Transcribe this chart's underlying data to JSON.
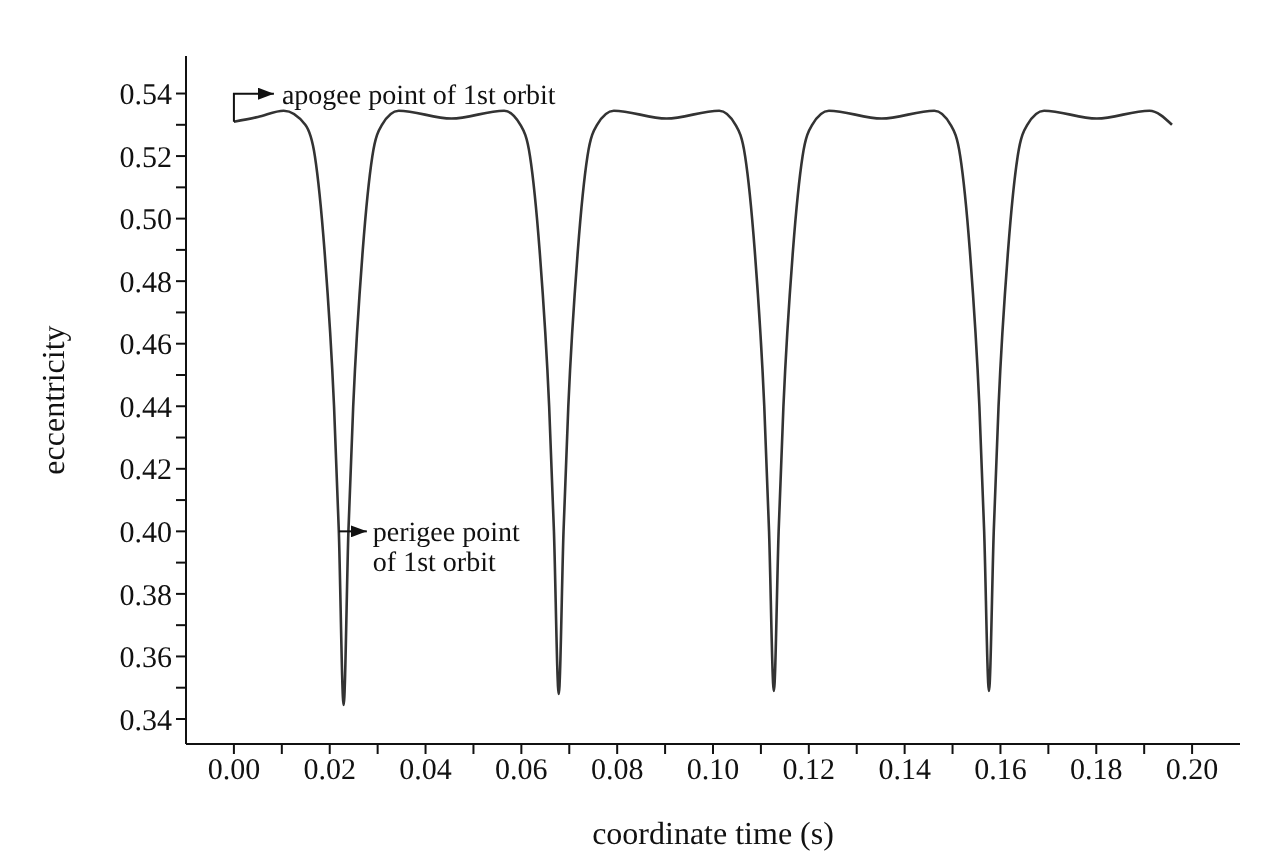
{
  "chart_data": {
    "type": "line",
    "xlabel": "coordinate time (s)",
    "ylabel": "eccentricity",
    "x": [
      0,
      0.005,
      0.0104,
      0.0149,
      0.0169,
      0.0189,
      0.0209,
      0.0219,
      0.0229,
      0.0239,
      0.0249,
      0.0269,
      0.0289,
      0.0309,
      0.0344,
      0.0454,
      0.0564,
      0.0598,
      0.0618,
      0.0638,
      0.0658,
      0.0668,
      0.0678,
      0.0688,
      0.0698,
      0.0718,
      0.0738,
      0.0758,
      0.0793,
      0.0903,
      0.1013,
      0.1047,
      0.1067,
      0.1087,
      0.1107,
      0.1117,
      0.1127,
      0.1137,
      0.1147,
      0.1167,
      0.1187,
      0.1207,
      0.1242,
      0.1352,
      0.1462,
      0.1496,
      0.1516,
      0.1536,
      0.1556,
      0.1566,
      0.1576,
      0.1586,
      0.1596,
      0.1616,
      0.1636,
      0.1656,
      0.1691,
      0.1801,
      0.1911,
      0.1958
    ],
    "series": [
      {
        "color": "#333333",
        "values": [
          0.531,
          0.5325,
          0.5345,
          0.53,
          0.52,
          0.49,
          0.44,
          0.4,
          0.3445,
          0.4,
          0.44,
          0.49,
          0.52,
          0.53,
          0.5345,
          0.532,
          0.5345,
          0.53,
          0.52,
          0.49,
          0.44,
          0.4,
          0.348,
          0.4,
          0.44,
          0.49,
          0.52,
          0.53,
          0.5345,
          0.532,
          0.5345,
          0.53,
          0.52,
          0.49,
          0.44,
          0.4,
          0.349,
          0.4,
          0.44,
          0.49,
          0.52,
          0.53,
          0.5345,
          0.532,
          0.5345,
          0.53,
          0.52,
          0.49,
          0.44,
          0.4,
          0.349,
          0.4,
          0.44,
          0.49,
          0.52,
          0.53,
          0.5345,
          0.532,
          0.5345,
          0.53
        ]
      }
    ],
    "xlim": [
      -0.01,
      0.21
    ],
    "xticks": [
      {
        "value": 0,
        "label": "0.00"
      },
      {
        "value": 0.01,
        "label": null
      },
      {
        "value": 0.02,
        "label": "0.02"
      },
      {
        "value": 0.03,
        "label": null
      },
      {
        "value": 0.04,
        "label": "0.04"
      },
      {
        "value": 0.05,
        "label": null
      },
      {
        "value": 0.06,
        "label": "0.06"
      },
      {
        "value": 0.07,
        "label": null
      },
      {
        "value": 0.08,
        "label": "0.08"
      },
      {
        "value": 0.09,
        "label": null
      },
      {
        "value": 0.1,
        "label": "0.10"
      },
      {
        "value": 0.11,
        "label": null
      },
      {
        "value": 0.12,
        "label": "0.12"
      },
      {
        "value": 0.13,
        "label": null
      },
      {
        "value": 0.14,
        "label": "0.14"
      },
      {
        "value": 0.15,
        "label": null
      },
      {
        "value": 0.16,
        "label": "0.16"
      },
      {
        "value": 0.17,
        "label": null
      },
      {
        "value": 0.18,
        "label": "0.18"
      },
      {
        "value": 0.19,
        "label": null
      },
      {
        "value": 0.2,
        "label": "0.20"
      }
    ],
    "ylim": [
      0.332,
      0.552
    ],
    "yticks": [
      {
        "value": 0.34,
        "label": "0.34"
      },
      {
        "value": 0.35,
        "label": null
      },
      {
        "value": 0.36,
        "label": "0.36"
      },
      {
        "value": 0.37,
        "label": null
      },
      {
        "value": 0.38,
        "label": "0.38"
      },
      {
        "value": 0.39,
        "label": null
      },
      {
        "value": 0.4,
        "label": "0.40"
      },
      {
        "value": 0.41,
        "label": null
      },
      {
        "value": 0.42,
        "label": "0.42"
      },
      {
        "value": 0.43,
        "label": null
      },
      {
        "value": 0.44,
        "label": "0.44"
      },
      {
        "value": 0.45,
        "label": null
      },
      {
        "value": 0.46,
        "label": "0.46"
      },
      {
        "value": 0.47,
        "label": null
      },
      {
        "value": 0.48,
        "label": "0.48"
      },
      {
        "value": 0.49,
        "label": null
      },
      {
        "value": 0.5,
        "label": "0.50"
      },
      {
        "value": 0.51,
        "label": null
      },
      {
        "value": 0.52,
        "label": "0.52"
      },
      {
        "value": 0.53,
        "label": null
      },
      {
        "value": 0.54,
        "label": "0.54"
      }
    ],
    "annotations": [
      {
        "text": "apogee point of 1st orbit",
        "x": 0,
        "y": 0.531
      },
      {
        "text": "perigee point\nof 1st orbit",
        "x": 0.0219,
        "y": 0.4
      }
    ],
    "marker": "none",
    "line_style": "solid",
    "grid": false,
    "legend": false
  }
}
